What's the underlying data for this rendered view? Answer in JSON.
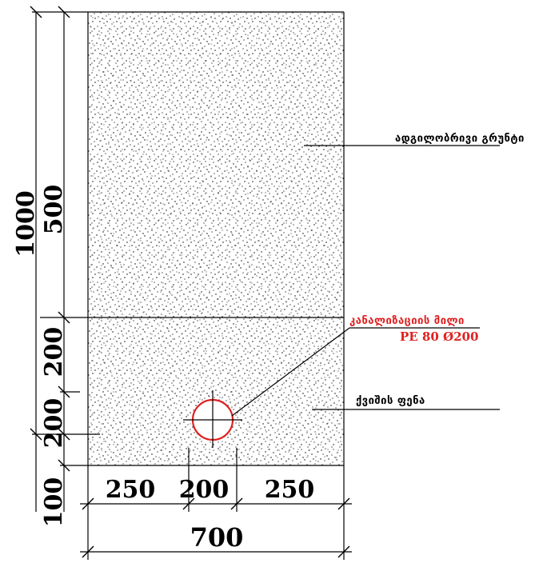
{
  "labels": {
    "native_soil": "ადგილობრივი გრუნტი",
    "pipe_line1": "კანალიზაციის მილი",
    "pipe_line2": "PE 80   Ø200",
    "trench_fill": "ქვიშის ფენა"
  },
  "dimensions": {
    "total_height": "1000",
    "upper_layer": "500",
    "sand_upper": "200",
    "sand_lower": "200",
    "bottom": "100",
    "width_left": "250",
    "width_pipe": "200",
    "width_right": "250",
    "total_width": "700"
  },
  "colors": {
    "pipe": "#e02020",
    "lines": "#000000",
    "fill_dots": "#000000"
  }
}
